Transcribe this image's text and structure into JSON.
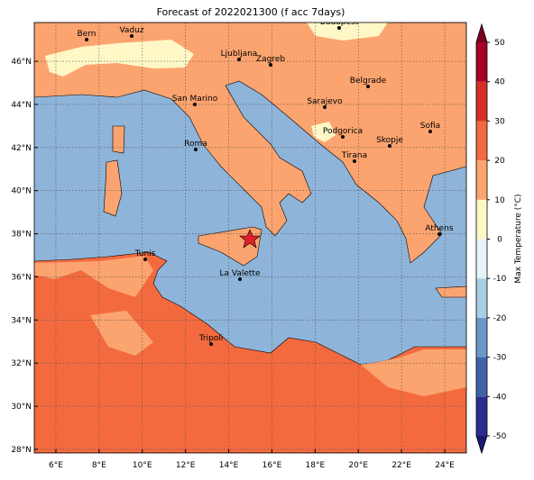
{
  "chart_data": {
    "type": "map",
    "title": "Forecast of 2022021300 (f acc 7days)",
    "xlim": [
      5,
      25
    ],
    "ylim": [
      27.83,
      47.8
    ],
    "xticks": [
      {
        "value": 6,
        "label": "6°E"
      },
      {
        "value": 8,
        "label": "8°E"
      },
      {
        "value": 10,
        "label": "10°E"
      },
      {
        "value": 12,
        "label": "12°E"
      },
      {
        "value": 14,
        "label": "14°E"
      },
      {
        "value": 16,
        "label": "16°E"
      },
      {
        "value": 18,
        "label": "18°E"
      },
      {
        "value": 20,
        "label": "20°E"
      },
      {
        "value": 22,
        "label": "22°E"
      },
      {
        "value": 24,
        "label": "24°E"
      }
    ],
    "yticks": [
      {
        "value": 28,
        "label": "28°N"
      },
      {
        "value": 30,
        "label": "30°N"
      },
      {
        "value": 32,
        "label": "32°N"
      },
      {
        "value": 34,
        "label": "34°N"
      },
      {
        "value": 36,
        "label": "36°N"
      },
      {
        "value": 38,
        "label": "38°N"
      },
      {
        "value": 40,
        "label": "40°N"
      },
      {
        "value": 42,
        "label": "42°N"
      },
      {
        "value": 44,
        "label": "44°N"
      },
      {
        "value": 46,
        "label": "46°N"
      }
    ],
    "grid": true,
    "cities": [
      "Bern",
      "Vaduz",
      "Budapest",
      "Ljubljana",
      "Zagreb",
      "Belgrade",
      "San Marino",
      "Sarajevo",
      "Sofia",
      "Podgorica",
      "Skopje",
      "Roma",
      "Tirana",
      "Athens",
      "Tunis",
      "La Valette",
      "Tripoli"
    ],
    "colorbar": {
      "label": "Max Temperature (°C)",
      "ticks": [
        -50,
        -40,
        -30,
        -20,
        -10,
        0,
        10,
        20,
        30,
        40,
        50
      ],
      "colors": [
        "#2b2e8f",
        "#3f63a8",
        "#6a96c8",
        "#a9cde3",
        "#e6f3f7",
        "#fff8c6",
        "#fca46f",
        "#f46a3f",
        "#d63024",
        "#a50026"
      ],
      "under_color": "#1a1a6e",
      "over_color": "#7a0020"
    }
  }
}
